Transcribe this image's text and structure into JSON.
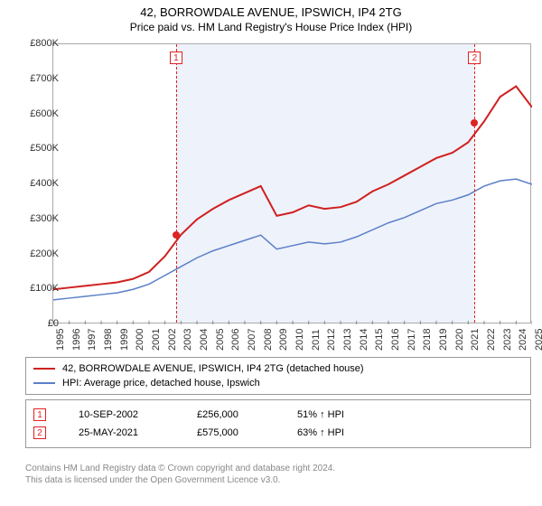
{
  "title": "42, BORROWDALE AVENUE, IPSWICH, IP4 2TG",
  "subtitle": "Price paid vs. HM Land Registry's House Price Index (HPI)",
  "chart": {
    "type": "line",
    "background_color": "#ffffff",
    "plot_border_color": "#aaaaaa",
    "highlight_band_color": "#eef2fb",
    "ylim": [
      0,
      800000
    ],
    "ytick_step": 100000,
    "y_axis": {
      "ticks": [
        "£0",
        "£100K",
        "£200K",
        "£300K",
        "£400K",
        "£500K",
        "£600K",
        "£700K",
        "£800K"
      ]
    },
    "x_axis": {
      "ticks": [
        "1995",
        "1996",
        "1997",
        "1998",
        "1999",
        "2000",
        "2001",
        "2002",
        "2003",
        "2004",
        "2005",
        "2006",
        "2007",
        "2008",
        "2009",
        "2010",
        "2011",
        "2012",
        "2013",
        "2014",
        "2015",
        "2016",
        "2017",
        "2018",
        "2019",
        "2020",
        "2021",
        "2022",
        "2023",
        "2024",
        "2025"
      ]
    },
    "series": [
      {
        "name": "42, BORROWDALE AVENUE, IPSWICH, IP4 2TG (detached house)",
        "color": "#d02020",
        "line_width": 2,
        "values": [
          100,
          105,
          110,
          115,
          120,
          130,
          150,
          195,
          256,
          300,
          330,
          355,
          375,
          395,
          310,
          320,
          340,
          330,
          335,
          350,
          380,
          400,
          425,
          450,
          475,
          490,
          520,
          580,
          650,
          680,
          620
        ]
      },
      {
        "name": "HPI: Average price, detached house, Ipswich",
        "color": "#5b7fc7",
        "line_width": 1.5,
        "values": [
          70,
          75,
          80,
          85,
          90,
          100,
          115,
          140,
          165,
          190,
          210,
          225,
          240,
          255,
          215,
          225,
          235,
          230,
          235,
          250,
          270,
          290,
          305,
          325,
          345,
          355,
          370,
          395,
          410,
          415,
          400
        ]
      }
    ],
    "highlight_band": {
      "start_year": "2002",
      "end_year": "2021"
    },
    "events": [
      {
        "marker": "1",
        "year_frac": 2002.69,
        "value": 256000
      },
      {
        "marker": "2",
        "year_frac": 2021.4,
        "value": 575000
      }
    ]
  },
  "transactions": [
    {
      "marker": "1",
      "date": "10-SEP-2002",
      "price": "£256,000",
      "hpi_diff": "51% ↑ HPI"
    },
    {
      "marker": "2",
      "date": "25-MAY-2021",
      "price": "£575,000",
      "hpi_diff": "63% ↑ HPI"
    }
  ],
  "copyright": {
    "line1": "Contains HM Land Registry data © Crown copyright and database right 2024.",
    "line2": "This data is licensed under the Open Government Licence v3.0."
  }
}
